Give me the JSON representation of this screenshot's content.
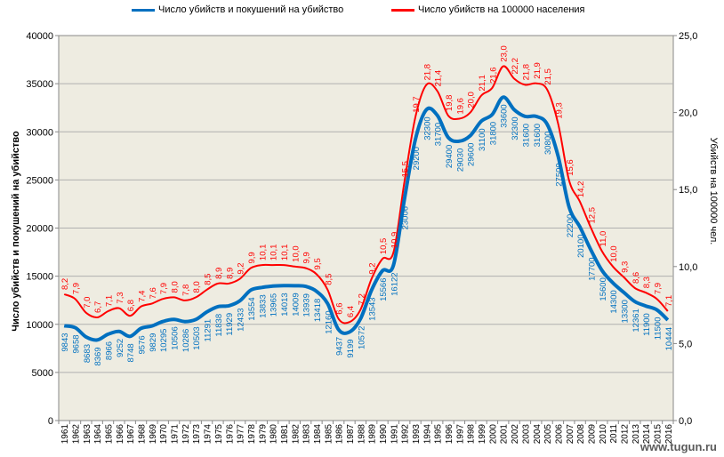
{
  "legend": {
    "series1": "Число убийств и покушений  на убийство",
    "series2": "Число убийств на 100000 населения"
  },
  "axes": {
    "left_title": "Число  убийств и покушений на убийство",
    "right_title": "Убийств на 100000 чел."
  },
  "watermark": "www.tugun.ru",
  "colors": {
    "plot_bg": "#EEECE1",
    "series1": "#0070C0",
    "series2": "#FF0000",
    "grid": "#B0B0B0"
  },
  "chart_data": {
    "type": "line",
    "grid": true,
    "legend_position": "top",
    "x": [
      1961,
      1962,
      1963,
      1964,
      1965,
      1966,
      1967,
      1968,
      1969,
      1970,
      1971,
      1972,
      1973,
      1974,
      1975,
      1976,
      1977,
      1978,
      1979,
      1980,
      1981,
      1982,
      1983,
      1984,
      1985,
      1986,
      1987,
      1988,
      1989,
      1990,
      1991,
      1992,
      1993,
      1994,
      1995,
      1996,
      1997,
      1998,
      1999,
      2000,
      2001,
      2002,
      2003,
      2004,
      2005,
      2006,
      2007,
      2008,
      2009,
      2010,
      2011,
      2012,
      2013,
      2014,
      2015,
      2016
    ],
    "ylim_left": [
      0,
      40000
    ],
    "yticks_left": [
      0,
      5000,
      10000,
      15000,
      20000,
      25000,
      30000,
      35000,
      40000
    ],
    "ylim_right": [
      0,
      25
    ],
    "yticks_right": [
      "0,0",
      "5,0",
      "10,0",
      "15,0",
      "20,0",
      "25,0"
    ],
    "series": [
      {
        "name": "Число убийств и покушений  на убийство",
        "axis": "left",
        "values": [
          9843,
          9658,
          8683,
          8369,
          8966,
          9252,
          8748,
          9576,
          9829,
          10295,
          10506,
          10286,
          10503,
          11291,
          11838,
          11929,
          12433,
          13554,
          13833,
          13965,
          14013,
          14009,
          13939,
          13418,
          12160,
          9437,
          9199,
          10572,
          13543,
          15566,
          16122,
          23006,
          29200,
          32300,
          31700,
          29400,
          29030,
          29600,
          31100,
          31800,
          33600,
          32300,
          31600,
          31600,
          30800,
          27500,
          22200,
          20100,
          17700,
          15600,
          14300,
          13300,
          12361,
          11900,
          11500,
          10444
        ],
        "labels": [
          "9843",
          "9658",
          "8683",
          "8369",
          "8966",
          "9252",
          "8748",
          "9576",
          "9829",
          "10295",
          "10506",
          "10286",
          "10503",
          "11291",
          "11838",
          "11929",
          "12433",
          "13554",
          "13833",
          "13965",
          "14013",
          "14009",
          "13939",
          "13418",
          "12160",
          "9437",
          "9199",
          "10572",
          "13543",
          "15566",
          "16122",
          "23006",
          "29200",
          "32300",
          "31700",
          "29400",
          "29030",
          "29600",
          "31100",
          "31800",
          "33600",
          "32300",
          "31600",
          "31600",
          "30800",
          "27500",
          "22200",
          "20100",
          "17700",
          "15600",
          "14300",
          "13300",
          "12361",
          "11900",
          "11500",
          "10444"
        ]
      },
      {
        "name": "Число убийств на 100000 населения",
        "axis": "right",
        "values": [
          8.2,
          7.9,
          7.0,
          6.7,
          7.1,
          7.3,
          6.8,
          7.4,
          7.6,
          7.9,
          8.0,
          7.8,
          8.0,
          8.5,
          8.9,
          8.9,
          9.2,
          9.9,
          10.1,
          10.1,
          10.1,
          10.0,
          9.9,
          9.5,
          8.5,
          6.6,
          6.4,
          7.2,
          9.2,
          10.5,
          10.9,
          15.5,
          19.7,
          21.8,
          21.4,
          19.8,
          19.6,
          20.0,
          21.1,
          21.6,
          23.0,
          22.2,
          21.8,
          21.9,
          21.5,
          19.3,
          15.6,
          14.2,
          12.5,
          11.0,
          10.0,
          9.3,
          8.6,
          8.3,
          7.9,
          7.1
        ],
        "labels": [
          "8,2",
          "7,9",
          "7,0",
          "6,7",
          "7,1",
          "7,3",
          "6,8",
          "7,4",
          "7,6",
          "7,9",
          "8,0",
          "7,8",
          "8,0",
          "8,5",
          "8,9",
          "8,9",
          "9,2",
          "9,9",
          "10,1",
          "10,1",
          "10,1",
          "10,0",
          "9,9",
          "9,5",
          "8,5",
          "6,6",
          "6,4",
          "7,2",
          "9,2",
          "10,5",
          "10,9",
          "15,5",
          "19,7",
          "21,8",
          "21,4",
          "19,8",
          "19,6",
          "20,0",
          "21,1",
          "21,6",
          "23,0",
          "22,2",
          "21,8",
          "21,9",
          "21,5",
          "19,3",
          "15,6",
          "14,2",
          "12,5",
          "11,0",
          "10,0",
          "9,3",
          "8,6",
          "8,3",
          "7,9",
          "7,1"
        ]
      }
    ]
  }
}
